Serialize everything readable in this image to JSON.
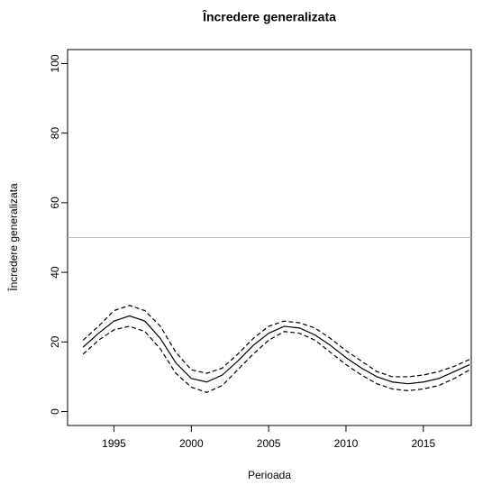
{
  "chart_data": {
    "type": "line",
    "title": "Încredere generalizata",
    "x_label": "Perioada",
    "y_label": "Încredere generalizata",
    "x": [
      1993,
      1994,
      1995,
      1996,
      1997,
      1998,
      1999,
      2000,
      2001,
      2002,
      2003,
      2004,
      2005,
      2006,
      2007,
      2008,
      2009,
      2010,
      2011,
      2012,
      2013,
      2014,
      2015,
      2016,
      2017,
      2018
    ],
    "series": [
      {
        "color": "#000000",
        "linestyle": "solid",
        "values": [
          18.5,
          22.5,
          26,
          27.5,
          26,
          21,
          14,
          9.5,
          8.5,
          10.5,
          14.5,
          19,
          22.5,
          24.5,
          24,
          22,
          19,
          15.5,
          12.5,
          10,
          8.5,
          8,
          8.5,
          9.5,
          11.5,
          13.5
        ]
      },
      {
        "color": "#000000",
        "linestyle": "dashed",
        "values": [
          20.5,
          24.5,
          29,
          30.5,
          29,
          24.5,
          17,
          12,
          11,
          12.5,
          16.5,
          21,
          24.5,
          26,
          25.5,
          24,
          21,
          17.5,
          14.5,
          11.5,
          10,
          10,
          10.5,
          11.5,
          13,
          15
        ]
      },
      {
        "color": "#000000",
        "linestyle": "dashed",
        "values": [
          16.5,
          20.5,
          23.5,
          24.5,
          23,
          18,
          11,
          7,
          5.5,
          7.5,
          12,
          16.5,
          20.5,
          23,
          22.5,
          20.5,
          17,
          13.5,
          10.5,
          8,
          6.5,
          6,
          6.5,
          7.5,
          9.5,
          12
        ]
      }
    ],
    "hline": {
      "value": 50,
      "color": "#bebebe"
    },
    "xlim": [
      1992,
      2018.1
    ],
    "xticks": [
      1995,
      2000,
      2005,
      2010,
      2015
    ],
    "ylim": [
      -4,
      104
    ],
    "yticks": [
      0,
      20,
      40,
      60,
      80,
      100
    ]
  }
}
